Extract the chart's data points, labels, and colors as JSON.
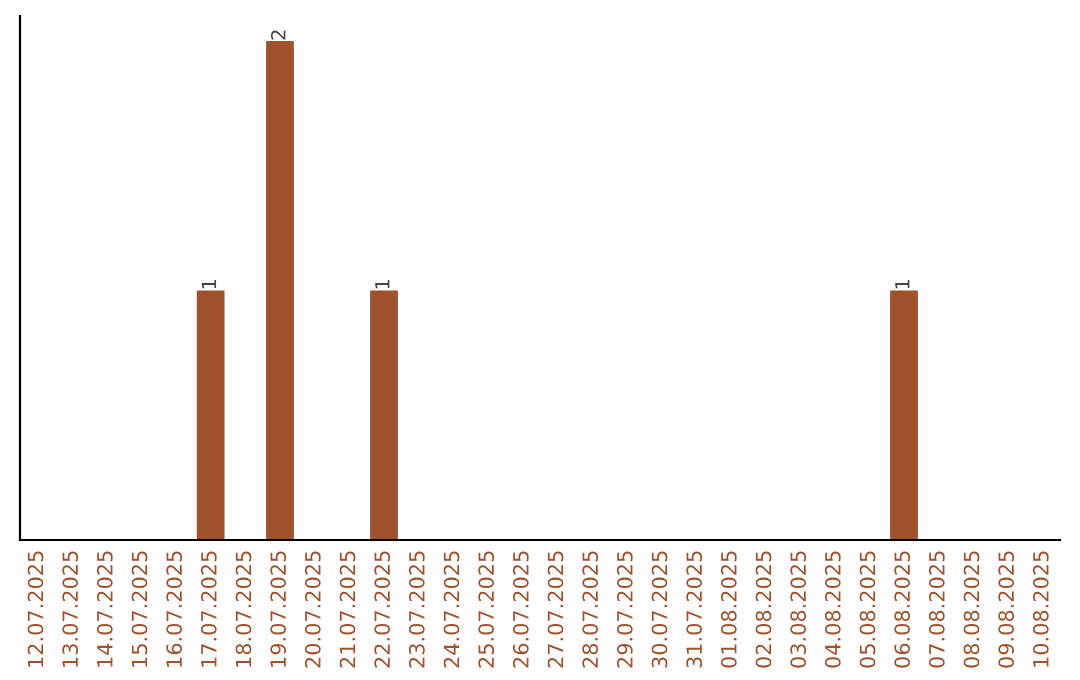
{
  "chart_data": {
    "type": "bar",
    "categories": [
      "12.07.2025",
      "13.07.2025",
      "14.07.2025",
      "15.07.2025",
      "16.07.2025",
      "17.07.2025",
      "18.07.2025",
      "19.07.2025",
      "20.07.2025",
      "21.07.2025",
      "22.07.2025",
      "23.07.2025",
      "24.07.2025",
      "25.07.2025",
      "26.07.2025",
      "27.07.2025",
      "28.07.2025",
      "29.07.2025",
      "30.07.2025",
      "31.07.2025",
      "01.08.2025",
      "02.08.2025",
      "03.08.2025",
      "04.08.2025",
      "05.08.2025",
      "06.08.2025",
      "07.08.2025",
      "08.08.2025",
      "09.08.2025",
      "10.08.2025"
    ],
    "values": [
      0,
      0,
      0,
      0,
      0,
      1,
      0,
      2,
      0,
      0,
      1,
      0,
      0,
      0,
      0,
      0,
      0,
      0,
      0,
      0,
      0,
      0,
      0,
      0,
      0,
      1,
      0,
      0,
      0,
      0
    ],
    "value_labels": [
      null,
      null,
      null,
      null,
      null,
      "1",
      null,
      "2",
      null,
      null,
      "1",
      null,
      null,
      null,
      null,
      null,
      null,
      null,
      null,
      null,
      null,
      null,
      null,
      null,
      null,
      "1",
      null,
      null,
      null,
      null
    ],
    "color": "#a0522d",
    "ylim": [
      0,
      2.1
    ],
    "tick_labels": "x"
  }
}
